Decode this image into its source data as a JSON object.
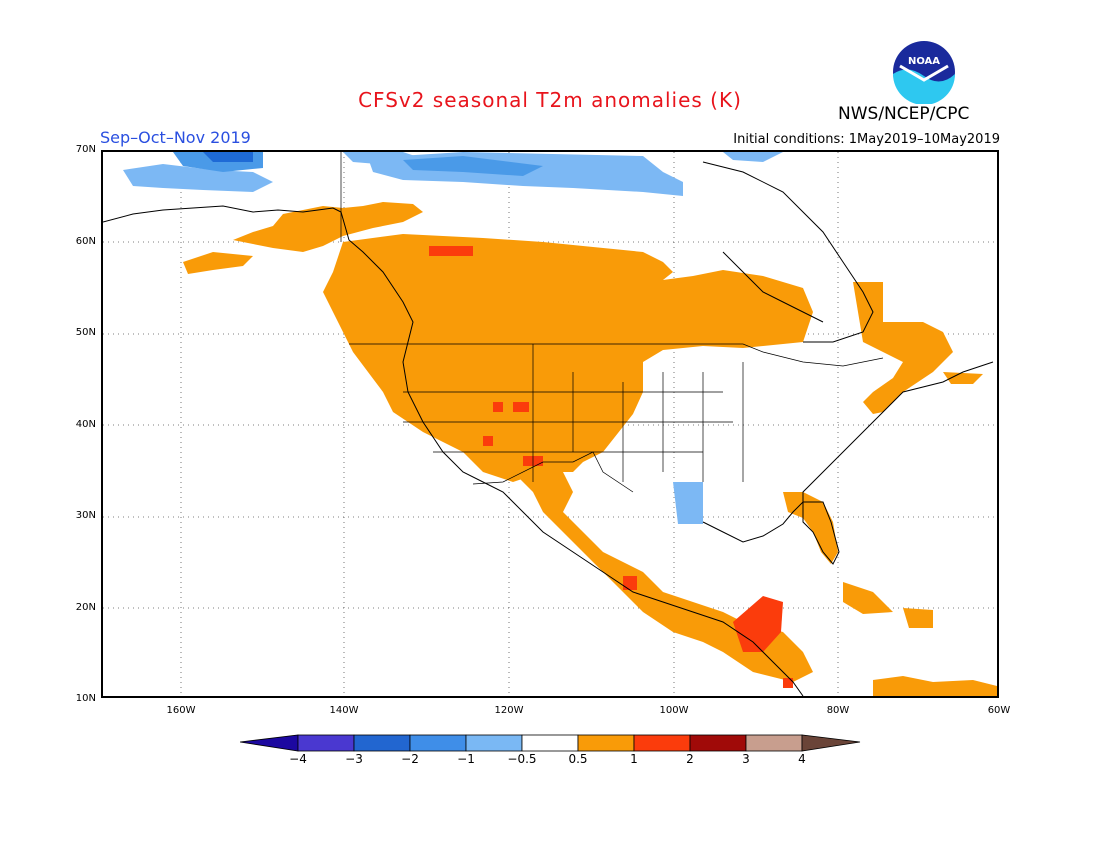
{
  "header": {
    "title": "CFSv2 seasonal T2m anomalies (K)",
    "agency": "NWS/NCEP/CPC",
    "season": "Sep–Oct–Nov 2019",
    "initial_conditions": "Initial conditions: 1May2019–10May2019",
    "logo_text": "NOAA"
  },
  "map": {
    "projection": "lat-lon",
    "lon_range": [
      -170,
      -60
    ],
    "lat_range": [
      10,
      70
    ],
    "lat_labels": [
      "70N",
      "60N",
      "50N",
      "40N",
      "30N",
      "20N",
      "10N"
    ],
    "lon_labels": [
      "160W",
      "140W",
      "120W",
      "100W",
      "80W",
      "60W"
    ],
    "colors": {
      "cold_light": "#7cb8f4",
      "cold_mid": "#4a9ae8",
      "cold_dark": "#1e6ad6",
      "warm": "#f99b08",
      "warm_strong": "#fb3c0c",
      "frame": "#000000"
    }
  },
  "colorbar": {
    "labels": [
      "−4",
      "−3",
      "−2",
      "−1",
      "−0.5",
      "0.5",
      "1",
      "2",
      "3",
      "4"
    ],
    "colors": [
      "#1c08a0",
      "#4a38d0",
      "#2266d0",
      "#3f8ee8",
      "#7ab8f4",
      "#ffffff",
      "#f99b08",
      "#fb3c0c",
      "#a00a08",
      "#c89e8e",
      "#6a4438"
    ]
  }
}
